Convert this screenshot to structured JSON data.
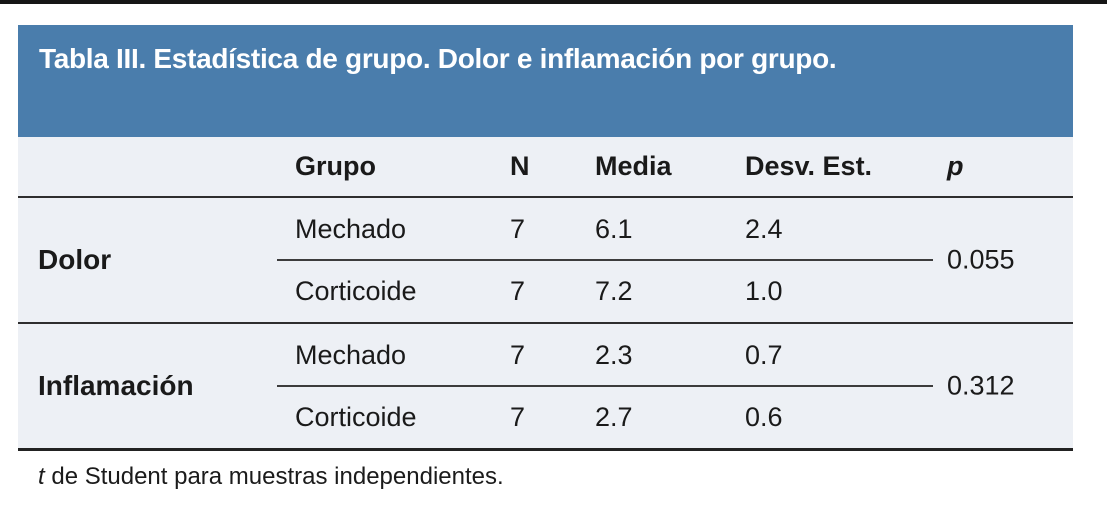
{
  "title": "Tabla III. Estadística de grupo. Dolor e inflamación por grupo.",
  "colors": {
    "title_bar_bg": "#4a7dac",
    "body_bg": "#edf0f5",
    "top_accent": "#161616",
    "text": "#1a1a1a"
  },
  "table": {
    "columns": {
      "label": "",
      "grupo": "Grupo",
      "n": "N",
      "media": "Media",
      "desv": "Desv. Est.",
      "p": "p"
    },
    "sections": [
      {
        "label": "Dolor",
        "p": "0.055",
        "rows": [
          {
            "grupo": "Mechado",
            "n": "7",
            "media": "6.1",
            "desv": "2.4"
          },
          {
            "grupo": "Corticoide",
            "n": "7",
            "media": "7.2",
            "desv": "1.0"
          }
        ]
      },
      {
        "label": "Inflamación",
        "p": "0.312",
        "rows": [
          {
            "grupo": "Mechado",
            "n": "7",
            "media": "2.3",
            "desv": "0.7"
          },
          {
            "grupo": "Corticoide",
            "n": "7",
            "media": "2.7",
            "desv": "0.6"
          }
        ]
      }
    ]
  },
  "footnote": {
    "t": "t",
    "text": " de Student para muestras independientes."
  }
}
